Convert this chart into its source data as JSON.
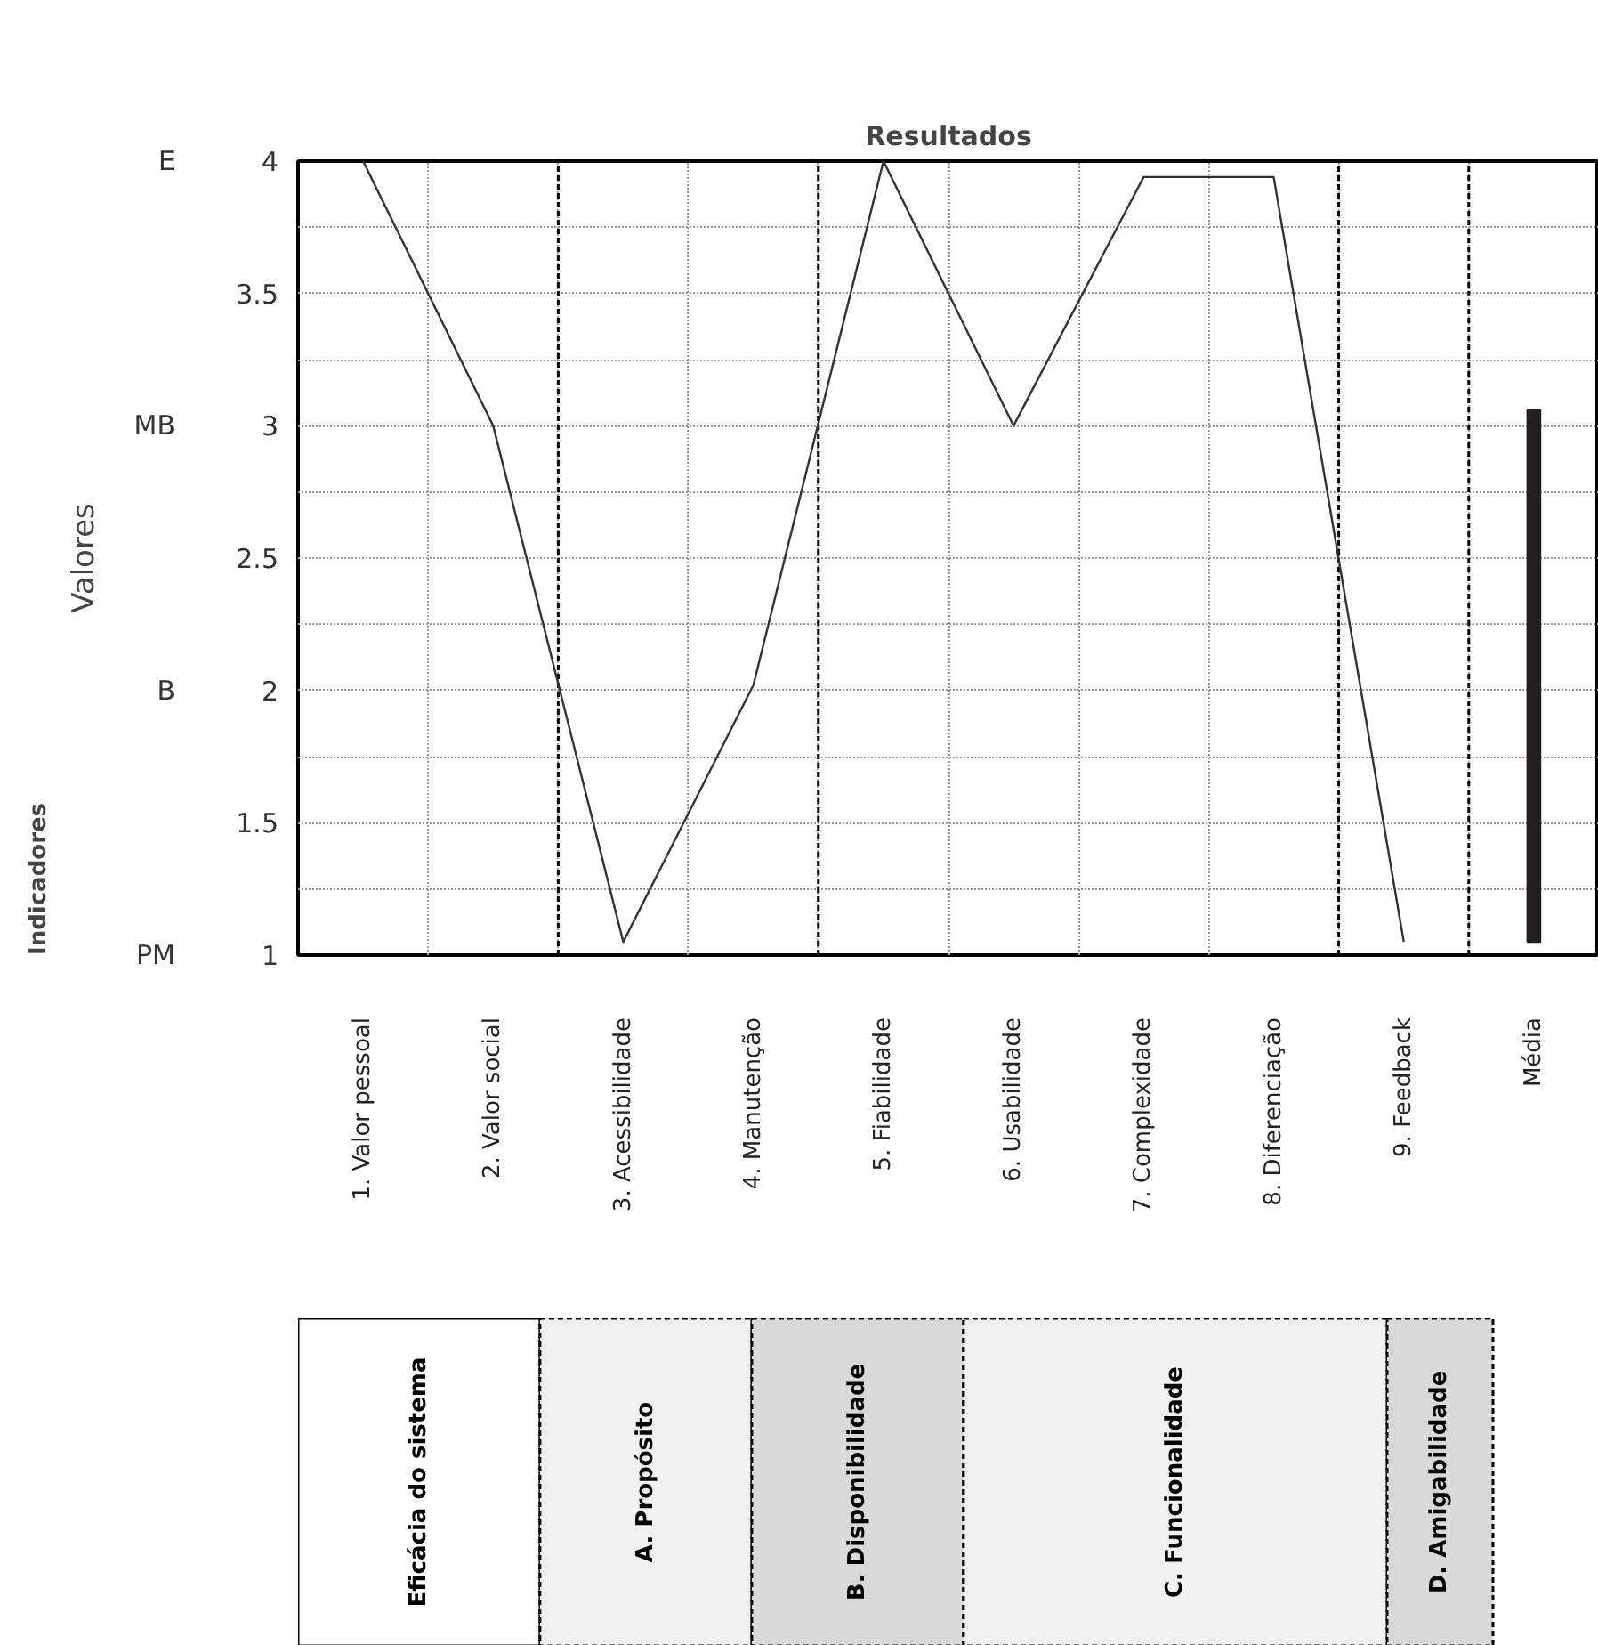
{
  "chart_data": {
    "type": "line",
    "title": "Resultados",
    "ylabel": "Valores",
    "categories": [
      "1. Valor pessoal",
      "2. Valor social",
      "3. Acessibilidade",
      "4. Manutenção",
      "5. Fiabilidade",
      "6. Usabilidade",
      "7. Complexidade",
      "8. Diferenciação",
      "9. Feedback",
      "Média"
    ],
    "series": [
      {
        "color": "#333333",
        "values": [
          4,
          3,
          1.05,
          2.02,
          4,
          3,
          3.94,
          3.94,
          1.05,
          null
        ]
      },
      {
        "type": "bar",
        "color": "#231f20",
        "values": [
          null,
          null,
          null,
          null,
          null,
          null,
          null,
          null,
          null,
          2.01
        ],
        "base": [
          null,
          null,
          null,
          null,
          null,
          null,
          null,
          null,
          null,
          1.05
        ]
      }
    ],
    "ylim": [
      1,
      4
    ],
    "yticks": [
      1,
      1.5,
      2,
      2.5,
      3,
      3.5,
      4
    ],
    "grid": true,
    "annotations": [
      "Indicadores",
      "Eficácia do sistema",
      "A. Propósito",
      "B. Disponibilidade",
      "C. Funcionalidade",
      "D. Amigabilidade",
      "E",
      "MB",
      "B",
      "PM"
    ]
  }
}
